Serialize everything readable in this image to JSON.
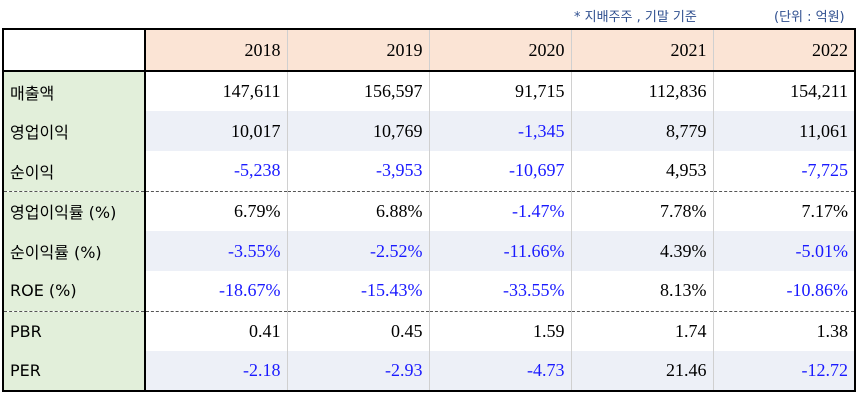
{
  "notes": {
    "basis": "* 지배주주 , 기말 기준",
    "unit": "(단위 : 억원)"
  },
  "table": {
    "years": [
      "2018",
      "2019",
      "2020",
      "2021",
      "2022"
    ],
    "rows": [
      {
        "label": "매출액",
        "values": [
          "147,611",
          "156,597",
          "91,715",
          "112,836",
          "154,211"
        ]
      },
      {
        "label": "영업이익",
        "values": [
          "10,017",
          "10,769",
          "-1,345",
          "8,779",
          "11,061"
        ]
      },
      {
        "label": "순이익",
        "values": [
          "-5,238",
          "-3,953",
          "-10,697",
          "4,953",
          "-7,725"
        ]
      },
      {
        "label": "영업이익률 (%)",
        "values": [
          "6.79%",
          "6.88%",
          "-1.47%",
          "7.78%",
          "7.17%"
        ]
      },
      {
        "label": "순이익률 (%)",
        "values": [
          "-3.55%",
          "-2.52%",
          "-11.66%",
          "4.39%",
          "-5.01%"
        ]
      },
      {
        "label": "ROE (%)",
        "values": [
          "-18.67%",
          "-15.43%",
          "-33.55%",
          "8.13%",
          "-10.86%"
        ]
      },
      {
        "label": "PBR",
        "values": [
          "0.41",
          "0.45",
          "1.59",
          "1.74",
          "1.38"
        ]
      },
      {
        "label": "PER",
        "values": [
          "-2.18",
          "-2.93",
          "-4.73",
          "21.46",
          "-12.72"
        ]
      }
    ]
  },
  "colors": {
    "negative": "#1a1aff",
    "header_bg": "#fbe4d5",
    "label_bg": "#e2efda",
    "alt_row_bg": "#edf0f7"
  }
}
